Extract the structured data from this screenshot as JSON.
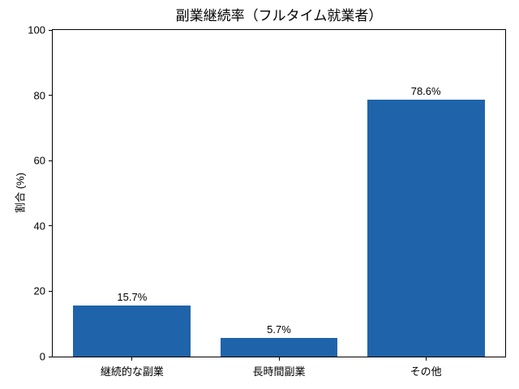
{
  "chart_data": {
    "type": "bar",
    "title": "副業継続率（フルタイム就業者）",
    "xlabel": "",
    "ylabel": "割合 (%)",
    "categories": [
      "継続的な副業",
      "長時間副業",
      "その他"
    ],
    "values": [
      15.7,
      5.7,
      78.6
    ],
    "value_labels": [
      "15.7%",
      "5.7%",
      "78.6%"
    ],
    "ylim": [
      0,
      100
    ],
    "yticks": [
      0,
      20,
      40,
      60,
      80,
      100
    ],
    "bar_color": "#1f64aa",
    "spine_color": "#000000",
    "background_color": "#ffffff",
    "grid": false,
    "legend": null
  }
}
